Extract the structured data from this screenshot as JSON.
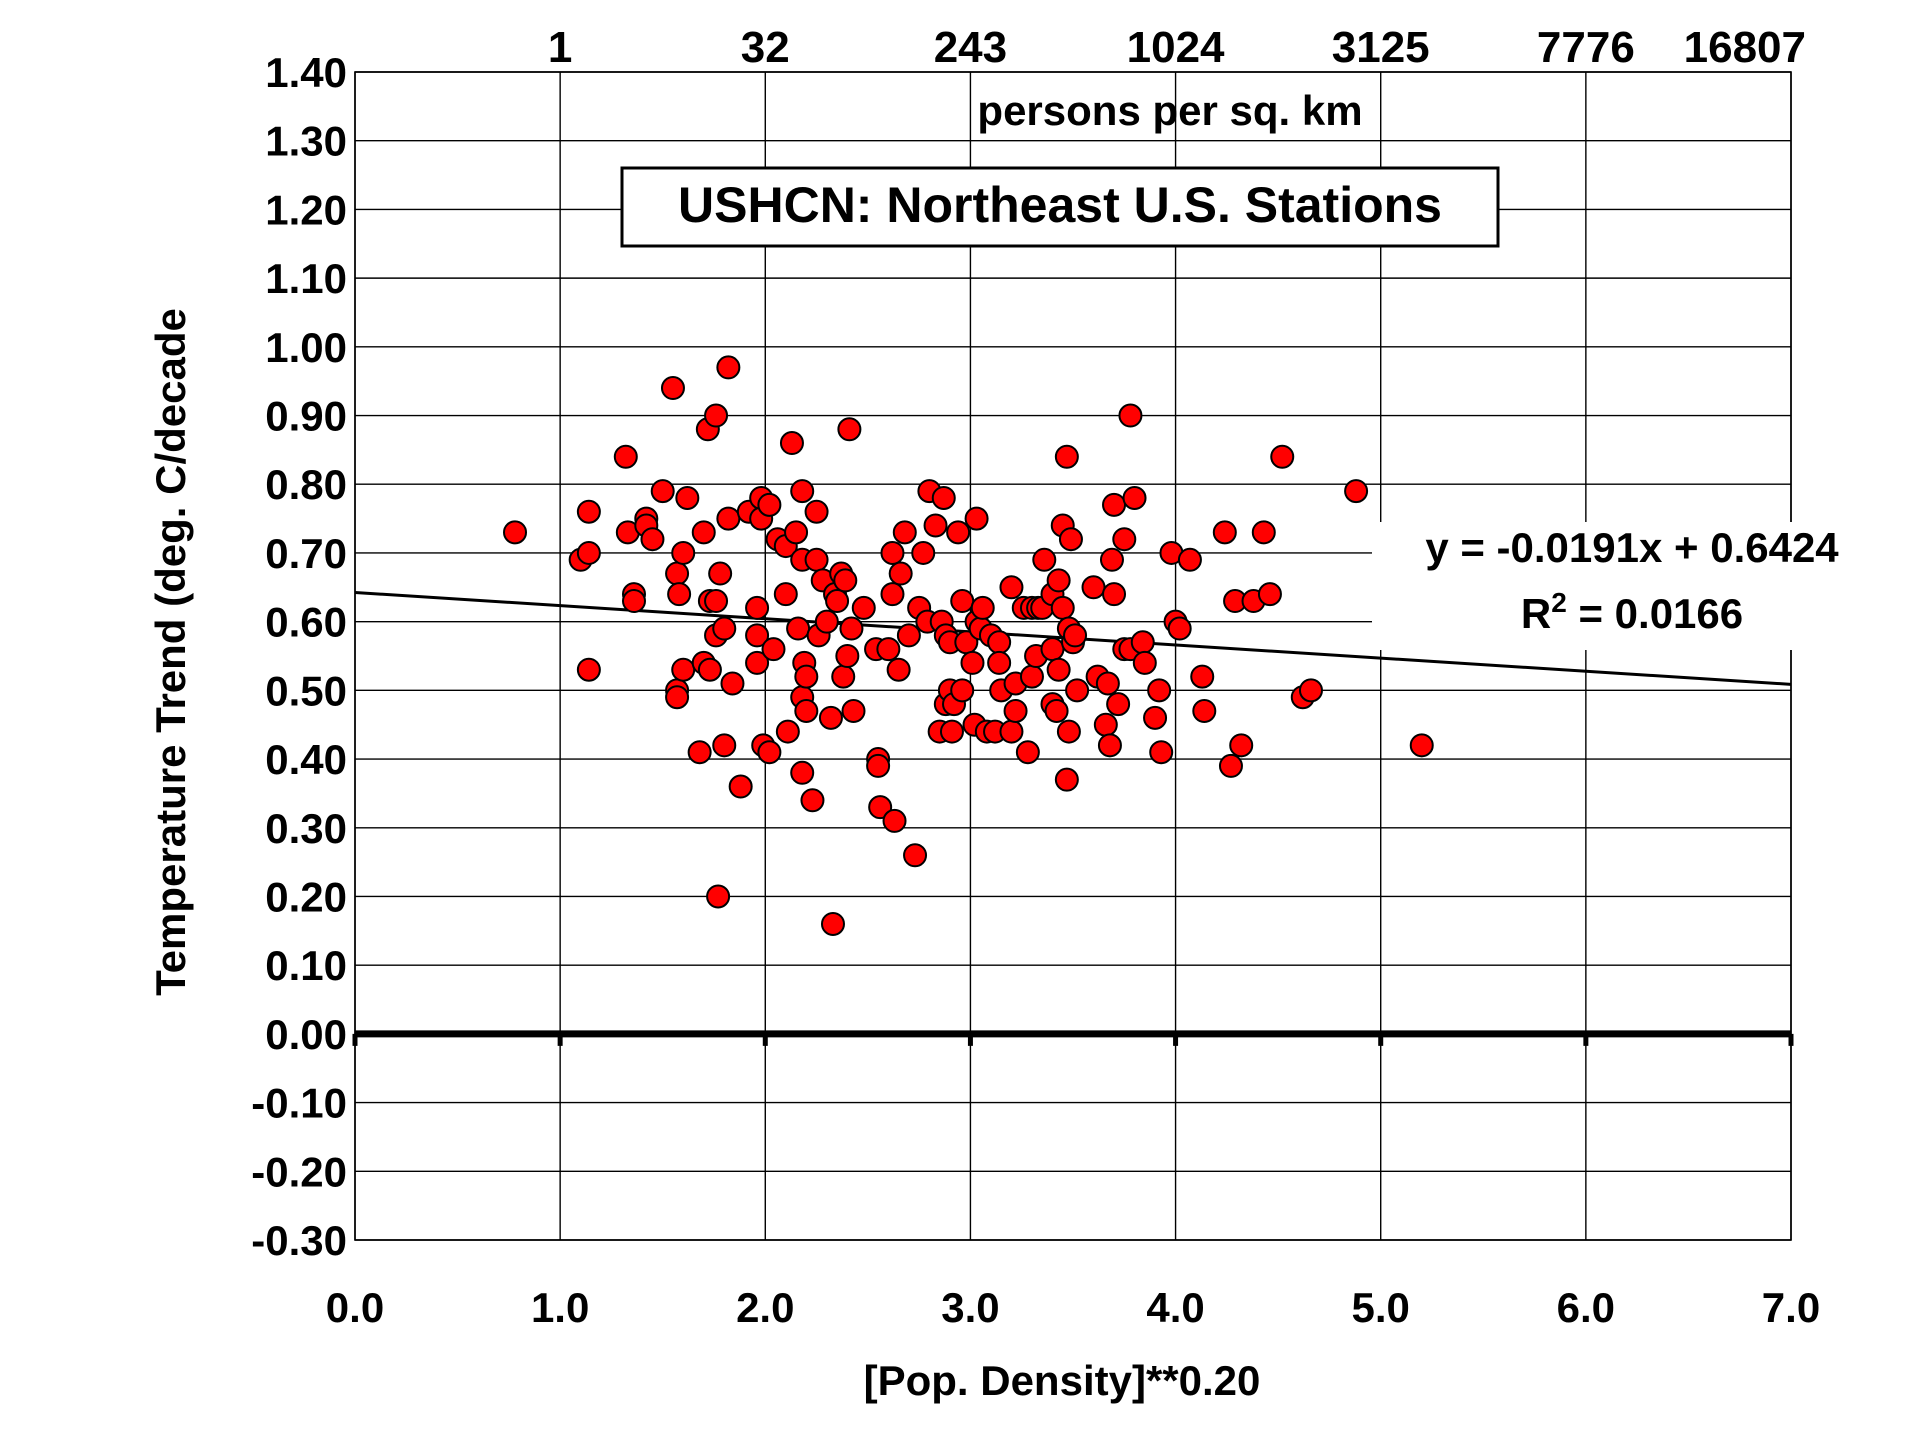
{
  "chart_data": {
    "type": "scatter",
    "title": "USHCN: Northeast U.S. Stations",
    "xlabel": "[Pop. Density]**0.20",
    "ylabel": "Temperature Trend (deg. C/decade",
    "xlim": [
      0.0,
      7.0
    ],
    "ylim": [
      -0.3,
      1.4
    ],
    "x_ticks": [
      "0.0",
      "1.0",
      "2.0",
      "3.0",
      "4.0",
      "5.0",
      "6.0",
      "7.0"
    ],
    "y_ticks": [
      "-0.30",
      "-0.20",
      "-0.10",
      "0.00",
      "0.10",
      "0.20",
      "0.30",
      "0.40",
      "0.50",
      "0.60",
      "0.70",
      "0.80",
      "0.90",
      "1.00",
      "1.10",
      "1.20",
      "1.30",
      "1.40"
    ],
    "top_axis": {
      "label": "persons per sq. km",
      "ticks": [
        {
          "x": 1.0,
          "label": "1"
        },
        {
          "x": 2.0,
          "label": "32"
        },
        {
          "x": 3.0,
          "label": "243"
        },
        {
          "x": 4.0,
          "label": "1024"
        },
        {
          "x": 5.0,
          "label": "3125"
        },
        {
          "x": 6.0,
          "label": "7776"
        },
        {
          "x": 7.0,
          "label": "16807"
        }
      ]
    },
    "grid": true,
    "trendline": {
      "slope": -0.0191,
      "intercept": 0.6424,
      "equation": "y = -0.0191x + 0.6424",
      "r2_prefix": "R",
      "r2_sup": "2",
      "r2_value": " = 0.0166"
    },
    "marker_color": "#ff0000",
    "points": [
      [
        0.78,
        0.73
      ],
      [
        1.1,
        0.69
      ],
      [
        1.14,
        0.7
      ],
      [
        1.14,
        0.76
      ],
      [
        1.14,
        0.53
      ],
      [
        1.32,
        0.84
      ],
      [
        1.33,
        0.73
      ],
      [
        1.36,
        0.64
      ],
      [
        1.36,
        0.63
      ],
      [
        1.42,
        0.75
      ],
      [
        1.42,
        0.74
      ],
      [
        1.45,
        0.72
      ],
      [
        1.5,
        0.79
      ],
      [
        1.55,
        0.94
      ],
      [
        1.57,
        0.67
      ],
      [
        1.57,
        0.5
      ],
      [
        1.57,
        0.49
      ],
      [
        1.58,
        0.64
      ],
      [
        1.6,
        0.7
      ],
      [
        1.6,
        0.53
      ],
      [
        1.62,
        0.78
      ],
      [
        1.68,
        0.41
      ],
      [
        1.7,
        0.73
      ],
      [
        1.7,
        0.54
      ],
      [
        1.72,
        0.88
      ],
      [
        1.73,
        0.63
      ],
      [
        1.73,
        0.53
      ],
      [
        1.76,
        0.9
      ],
      [
        1.76,
        0.63
      ],
      [
        1.76,
        0.58
      ],
      [
        1.77,
        0.2
      ],
      [
        1.78,
        0.67
      ],
      [
        1.8,
        0.59
      ],
      [
        1.8,
        0.42
      ],
      [
        1.82,
        0.97
      ],
      [
        1.82,
        0.75
      ],
      [
        1.84,
        0.51
      ],
      [
        1.88,
        0.36
      ],
      [
        1.92,
        0.76
      ],
      [
        1.96,
        0.62
      ],
      [
        1.96,
        0.58
      ],
      [
        1.96,
        0.54
      ],
      [
        1.98,
        0.78
      ],
      [
        1.98,
        0.75
      ],
      [
        1.99,
        0.42
      ],
      [
        2.02,
        0.77
      ],
      [
        2.02,
        0.41
      ],
      [
        2.04,
        0.56
      ],
      [
        2.06,
        0.72
      ],
      [
        2.1,
        0.71
      ],
      [
        2.1,
        0.64
      ],
      [
        2.11,
        0.44
      ],
      [
        2.13,
        0.86
      ],
      [
        2.15,
        0.73
      ],
      [
        2.16,
        0.59
      ],
      [
        2.18,
        0.79
      ],
      [
        2.18,
        0.69
      ],
      [
        2.18,
        0.49
      ],
      [
        2.18,
        0.38
      ],
      [
        2.19,
        0.54
      ],
      [
        2.2,
        0.47
      ],
      [
        2.2,
        0.52
      ],
      [
        2.23,
        0.34
      ],
      [
        2.25,
        0.76
      ],
      [
        2.25,
        0.69
      ],
      [
        2.26,
        0.58
      ],
      [
        2.28,
        0.66
      ],
      [
        2.3,
        0.6
      ],
      [
        2.32,
        0.46
      ],
      [
        2.33,
        0.16
      ],
      [
        2.34,
        0.64
      ],
      [
        2.35,
        0.63
      ],
      [
        2.37,
        0.67
      ],
      [
        2.38,
        0.52
      ],
      [
        2.39,
        0.66
      ],
      [
        2.4,
        0.55
      ],
      [
        2.41,
        0.88
      ],
      [
        2.42,
        0.59
      ],
      [
        2.43,
        0.47
      ],
      [
        2.48,
        0.62
      ],
      [
        2.54,
        0.56
      ],
      [
        2.55,
        0.4
      ],
      [
        2.55,
        0.39
      ],
      [
        2.56,
        0.33
      ],
      [
        2.6,
        0.56
      ],
      [
        2.62,
        0.7
      ],
      [
        2.62,
        0.64
      ],
      [
        2.63,
        0.31
      ],
      [
        2.65,
        0.53
      ],
      [
        2.66,
        0.67
      ],
      [
        2.68,
        0.73
      ],
      [
        2.7,
        0.58
      ],
      [
        2.73,
        0.26
      ],
      [
        2.75,
        0.62
      ],
      [
        2.77,
        0.7
      ],
      [
        2.79,
        0.6
      ],
      [
        2.8,
        0.79
      ],
      [
        2.83,
        0.74
      ],
      [
        2.85,
        0.44
      ],
      [
        2.86,
        0.6
      ],
      [
        2.87,
        0.78
      ],
      [
        2.88,
        0.58
      ],
      [
        2.88,
        0.48
      ],
      [
        2.9,
        0.57
      ],
      [
        2.9,
        0.5
      ],
      [
        2.91,
        0.44
      ],
      [
        2.92,
        0.48
      ],
      [
        2.94,
        0.73
      ],
      [
        2.96,
        0.63
      ],
      [
        2.96,
        0.5
      ],
      [
        2.98,
        0.57
      ],
      [
        3.01,
        0.54
      ],
      [
        3.02,
        0.45
      ],
      [
        3.03,
        0.75
      ],
      [
        3.03,
        0.6
      ],
      [
        3.05,
        0.59
      ],
      [
        3.06,
        0.62
      ],
      [
        3.08,
        0.44
      ],
      [
        3.1,
        0.58
      ],
      [
        3.12,
        0.44
      ],
      [
        3.14,
        0.57
      ],
      [
        3.14,
        0.54
      ],
      [
        3.15,
        0.5
      ],
      [
        3.2,
        0.65
      ],
      [
        3.2,
        0.44
      ],
      [
        3.22,
        0.51
      ],
      [
        3.22,
        0.47
      ],
      [
        3.26,
        0.62
      ],
      [
        3.28,
        0.41
      ],
      [
        3.3,
        0.62
      ],
      [
        3.3,
        0.52
      ],
      [
        3.32,
        0.55
      ],
      [
        3.33,
        0.62
      ],
      [
        3.35,
        0.62
      ],
      [
        3.36,
        0.69
      ],
      [
        3.4,
        0.64
      ],
      [
        3.4,
        0.56
      ],
      [
        3.4,
        0.48
      ],
      [
        3.42,
        0.47
      ],
      [
        3.43,
        0.66
      ],
      [
        3.43,
        0.53
      ],
      [
        3.45,
        0.62
      ],
      [
        3.45,
        0.74
      ],
      [
        3.47,
        0.84
      ],
      [
        3.47,
        0.37
      ],
      [
        3.48,
        0.59
      ],
      [
        3.48,
        0.44
      ],
      [
        3.49,
        0.72
      ],
      [
        3.5,
        0.57
      ],
      [
        3.51,
        0.58
      ],
      [
        3.52,
        0.5
      ],
      [
        3.6,
        0.65
      ],
      [
        3.62,
        0.52
      ],
      [
        3.66,
        0.45
      ],
      [
        3.67,
        0.51
      ],
      [
        3.68,
        0.42
      ],
      [
        3.69,
        0.69
      ],
      [
        3.7,
        0.64
      ],
      [
        3.7,
        0.77
      ],
      [
        3.72,
        0.48
      ],
      [
        3.75,
        0.56
      ],
      [
        3.75,
        0.72
      ],
      [
        3.78,
        0.9
      ],
      [
        3.78,
        0.56
      ],
      [
        3.8,
        0.78
      ],
      [
        3.84,
        0.57
      ],
      [
        3.85,
        0.54
      ],
      [
        3.9,
        0.46
      ],
      [
        3.92,
        0.5
      ],
      [
        3.93,
        0.41
      ],
      [
        3.98,
        0.7
      ],
      [
        4.0,
        0.6
      ],
      [
        4.02,
        0.59
      ],
      [
        4.07,
        0.69
      ],
      [
        4.13,
        0.52
      ],
      [
        4.14,
        0.47
      ],
      [
        4.24,
        0.73
      ],
      [
        4.27,
        0.39
      ],
      [
        4.29,
        0.63
      ],
      [
        4.32,
        0.42
      ],
      [
        4.38,
        0.63
      ],
      [
        4.43,
        0.73
      ],
      [
        4.46,
        0.64
      ],
      [
        4.52,
        0.84
      ],
      [
        4.62,
        0.49
      ],
      [
        4.66,
        0.5
      ],
      [
        4.88,
        0.79
      ],
      [
        5.2,
        0.42
      ]
    ]
  }
}
